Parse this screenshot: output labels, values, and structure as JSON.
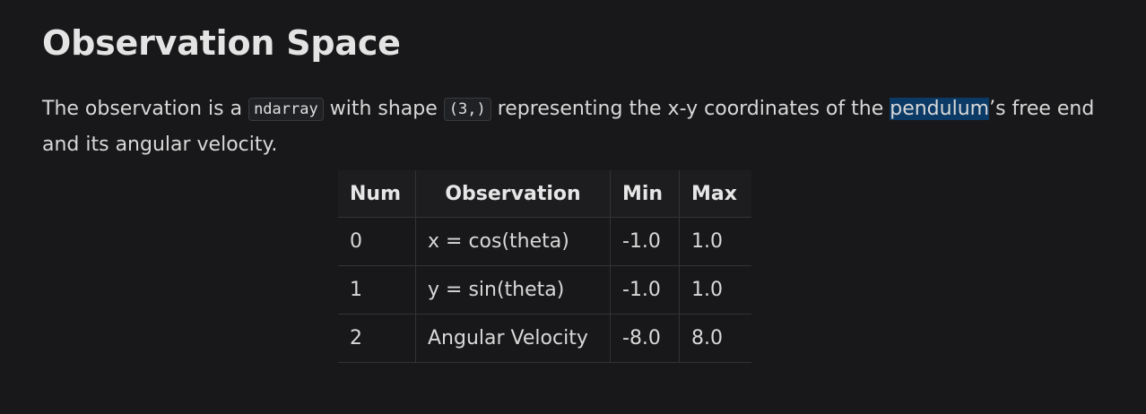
{
  "heading": "Observation Space",
  "description": {
    "part1": "The observation is a ",
    "code1": "ndarray",
    "part2": " with shape ",
    "code2": "(3,)",
    "part3": " representing the x-y coordinates of the ",
    "highlighted": "pendulum",
    "part4": "’s free end and its angular velocity."
  },
  "table": {
    "headers": [
      "Num",
      "Observation",
      "Min",
      "Max"
    ],
    "rows": [
      [
        "0",
        "x = cos(theta)",
        "-1.0",
        "1.0"
      ],
      [
        "1",
        "y = sin(theta)",
        "-1.0",
        "1.0"
      ],
      [
        "2",
        "Angular Velocity",
        "-8.0",
        "8.0"
      ]
    ]
  },
  "colors": {
    "background": "#18181a",
    "selection_highlight": "#0b3a66",
    "text": "#d8d8d8"
  }
}
